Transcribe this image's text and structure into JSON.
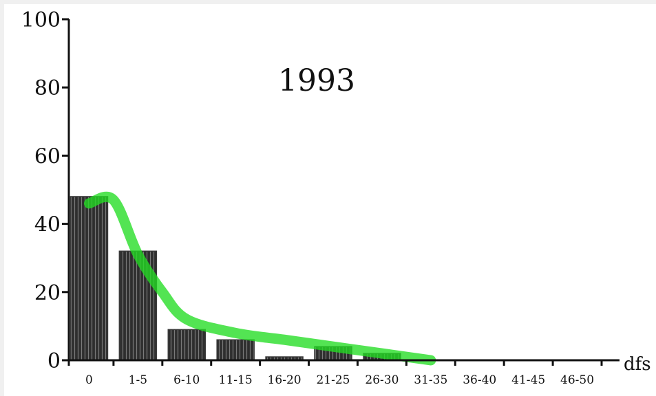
{
  "chart_data": {
    "type": "bar",
    "title": "1993",
    "xlabel": "dfs",
    "ylabel": "",
    "categories": [
      "0",
      "1-5",
      "6-10",
      "11-15",
      "16-20",
      "21-25",
      "26-30",
      "31-35",
      "36-40",
      "41-45",
      "46-50"
    ],
    "values": [
      48,
      32,
      9,
      6,
      1,
      4,
      2,
      0,
      0,
      0,
      0
    ],
    "ylim": [
      0,
      100
    ],
    "yticks": [
      0,
      20,
      40,
      60,
      80,
      100
    ],
    "grid": false,
    "legend": "none",
    "trend_curve": {
      "x": [
        "0",
        "0.5",
        "1-5",
        "1.5",
        "6-10",
        "11-15",
        "16-20",
        "21-25",
        "26-30",
        "31-35"
      ],
      "values": [
        46,
        47,
        31,
        20,
        12,
        8,
        6,
        4,
        2,
        0
      ],
      "color": "#22dd22"
    },
    "colors": {
      "bars": "#3a3a3a",
      "axis": "#111111",
      "curve": "#22dd22",
      "background": "#ffffff",
      "page": "#f0f0f0"
    }
  }
}
